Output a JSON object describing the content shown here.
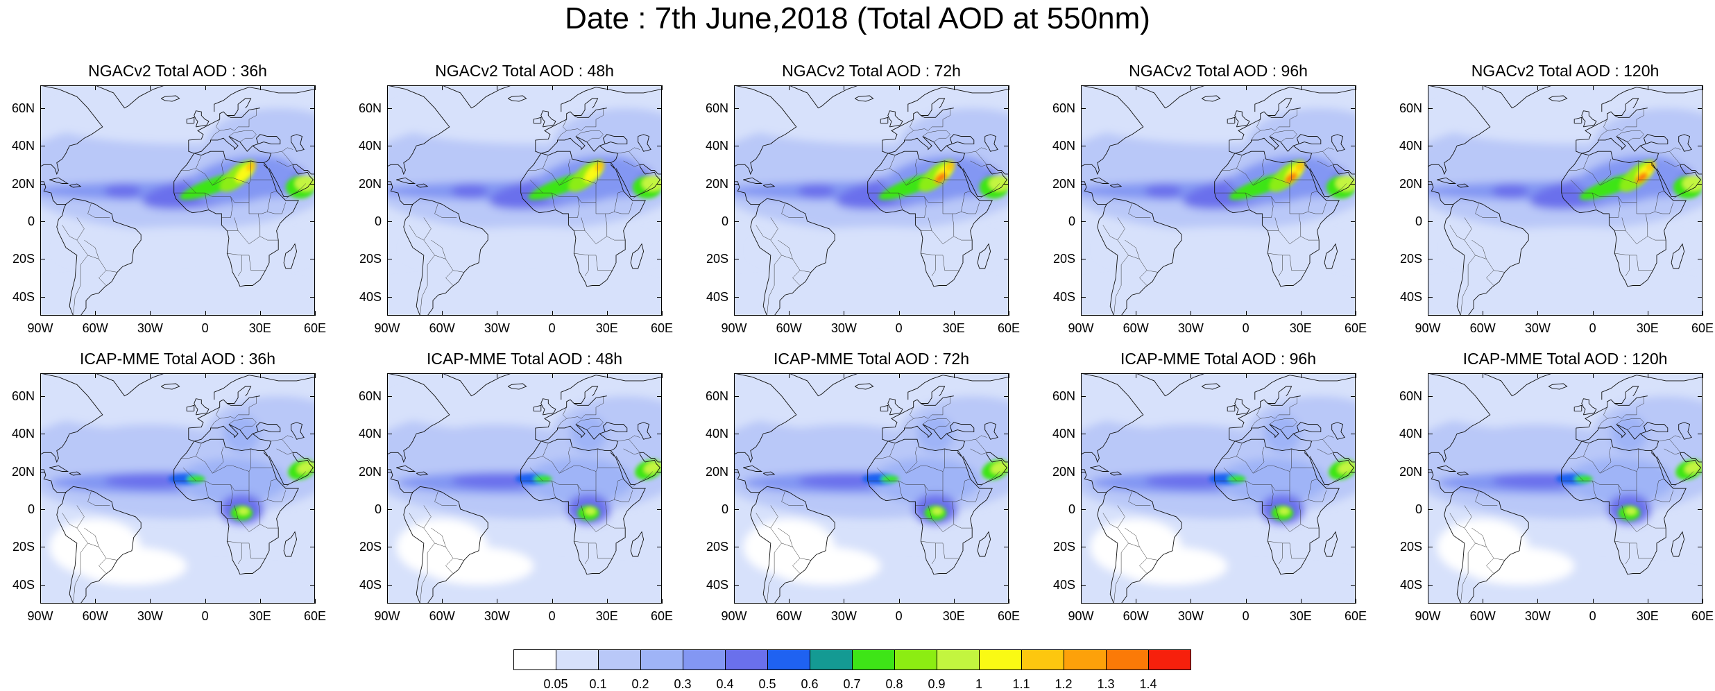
{
  "title": "Date : 7th June,2018 (Total AOD at 550nm)",
  "lat_labels": [
    "60N",
    "40N",
    "20N",
    "0",
    "20S",
    "40S"
  ],
  "lat_values": [
    60,
    40,
    20,
    0,
    -20,
    -40
  ],
  "lon_labels": [
    "90W",
    "60W",
    "30W",
    "0",
    "30E",
    "60E"
  ],
  "lon_values": [
    -90,
    -60,
    -30,
    0,
    30,
    60
  ],
  "map_extent": {
    "lon": [
      -90,
      60
    ],
    "lat": [
      -50,
      72
    ]
  },
  "panels": [
    {
      "model": "NGACv2",
      "title": "NGACv2 Total AOD : 36h",
      "lead_h": 36
    },
    {
      "model": "NGACv2",
      "title": "NGACv2 Total AOD : 48h",
      "lead_h": 48
    },
    {
      "model": "NGACv2",
      "title": "NGACv2 Total AOD : 72h",
      "lead_h": 72
    },
    {
      "model": "NGACv2",
      "title": "NGACv2 Total AOD : 96h",
      "lead_h": 96
    },
    {
      "model": "NGACv2",
      "title": "NGACv2 Total AOD : 120h",
      "lead_h": 120
    },
    {
      "model": "ICAP-MME",
      "title": "ICAP-MME Total AOD : 36h",
      "lead_h": 36
    },
    {
      "model": "ICAP-MME",
      "title": "ICAP-MME Total AOD : 48h",
      "lead_h": 48
    },
    {
      "model": "ICAP-MME",
      "title": "ICAP-MME Total AOD : 72h",
      "lead_h": 72
    },
    {
      "model": "ICAP-MME",
      "title": "ICAP-MME Total AOD : 96h",
      "lead_h": 96
    },
    {
      "model": "ICAP-MME",
      "title": "ICAP-MME Total AOD : 120h",
      "lead_h": 120
    }
  ],
  "colorbar": {
    "labels": [
      "0.05",
      "0.1",
      "0.2",
      "0.3",
      "0.4",
      "0.5",
      "0.6",
      "0.7",
      "0.8",
      "0.9",
      "1",
      "1.1",
      "1.2",
      "1.3",
      "1.4"
    ],
    "colors": [
      "#ffffff",
      "#d7e1fb",
      "#b9c8f8",
      "#9fb4f7",
      "#8397f3",
      "#6a70ec",
      "#1f62f1",
      "#149a93",
      "#3ee517",
      "#8ced12",
      "#c3f53f",
      "#fafa14",
      "#fdc70f",
      "#fda10a",
      "#fb7a07",
      "#f7200c"
    ]
  }
}
